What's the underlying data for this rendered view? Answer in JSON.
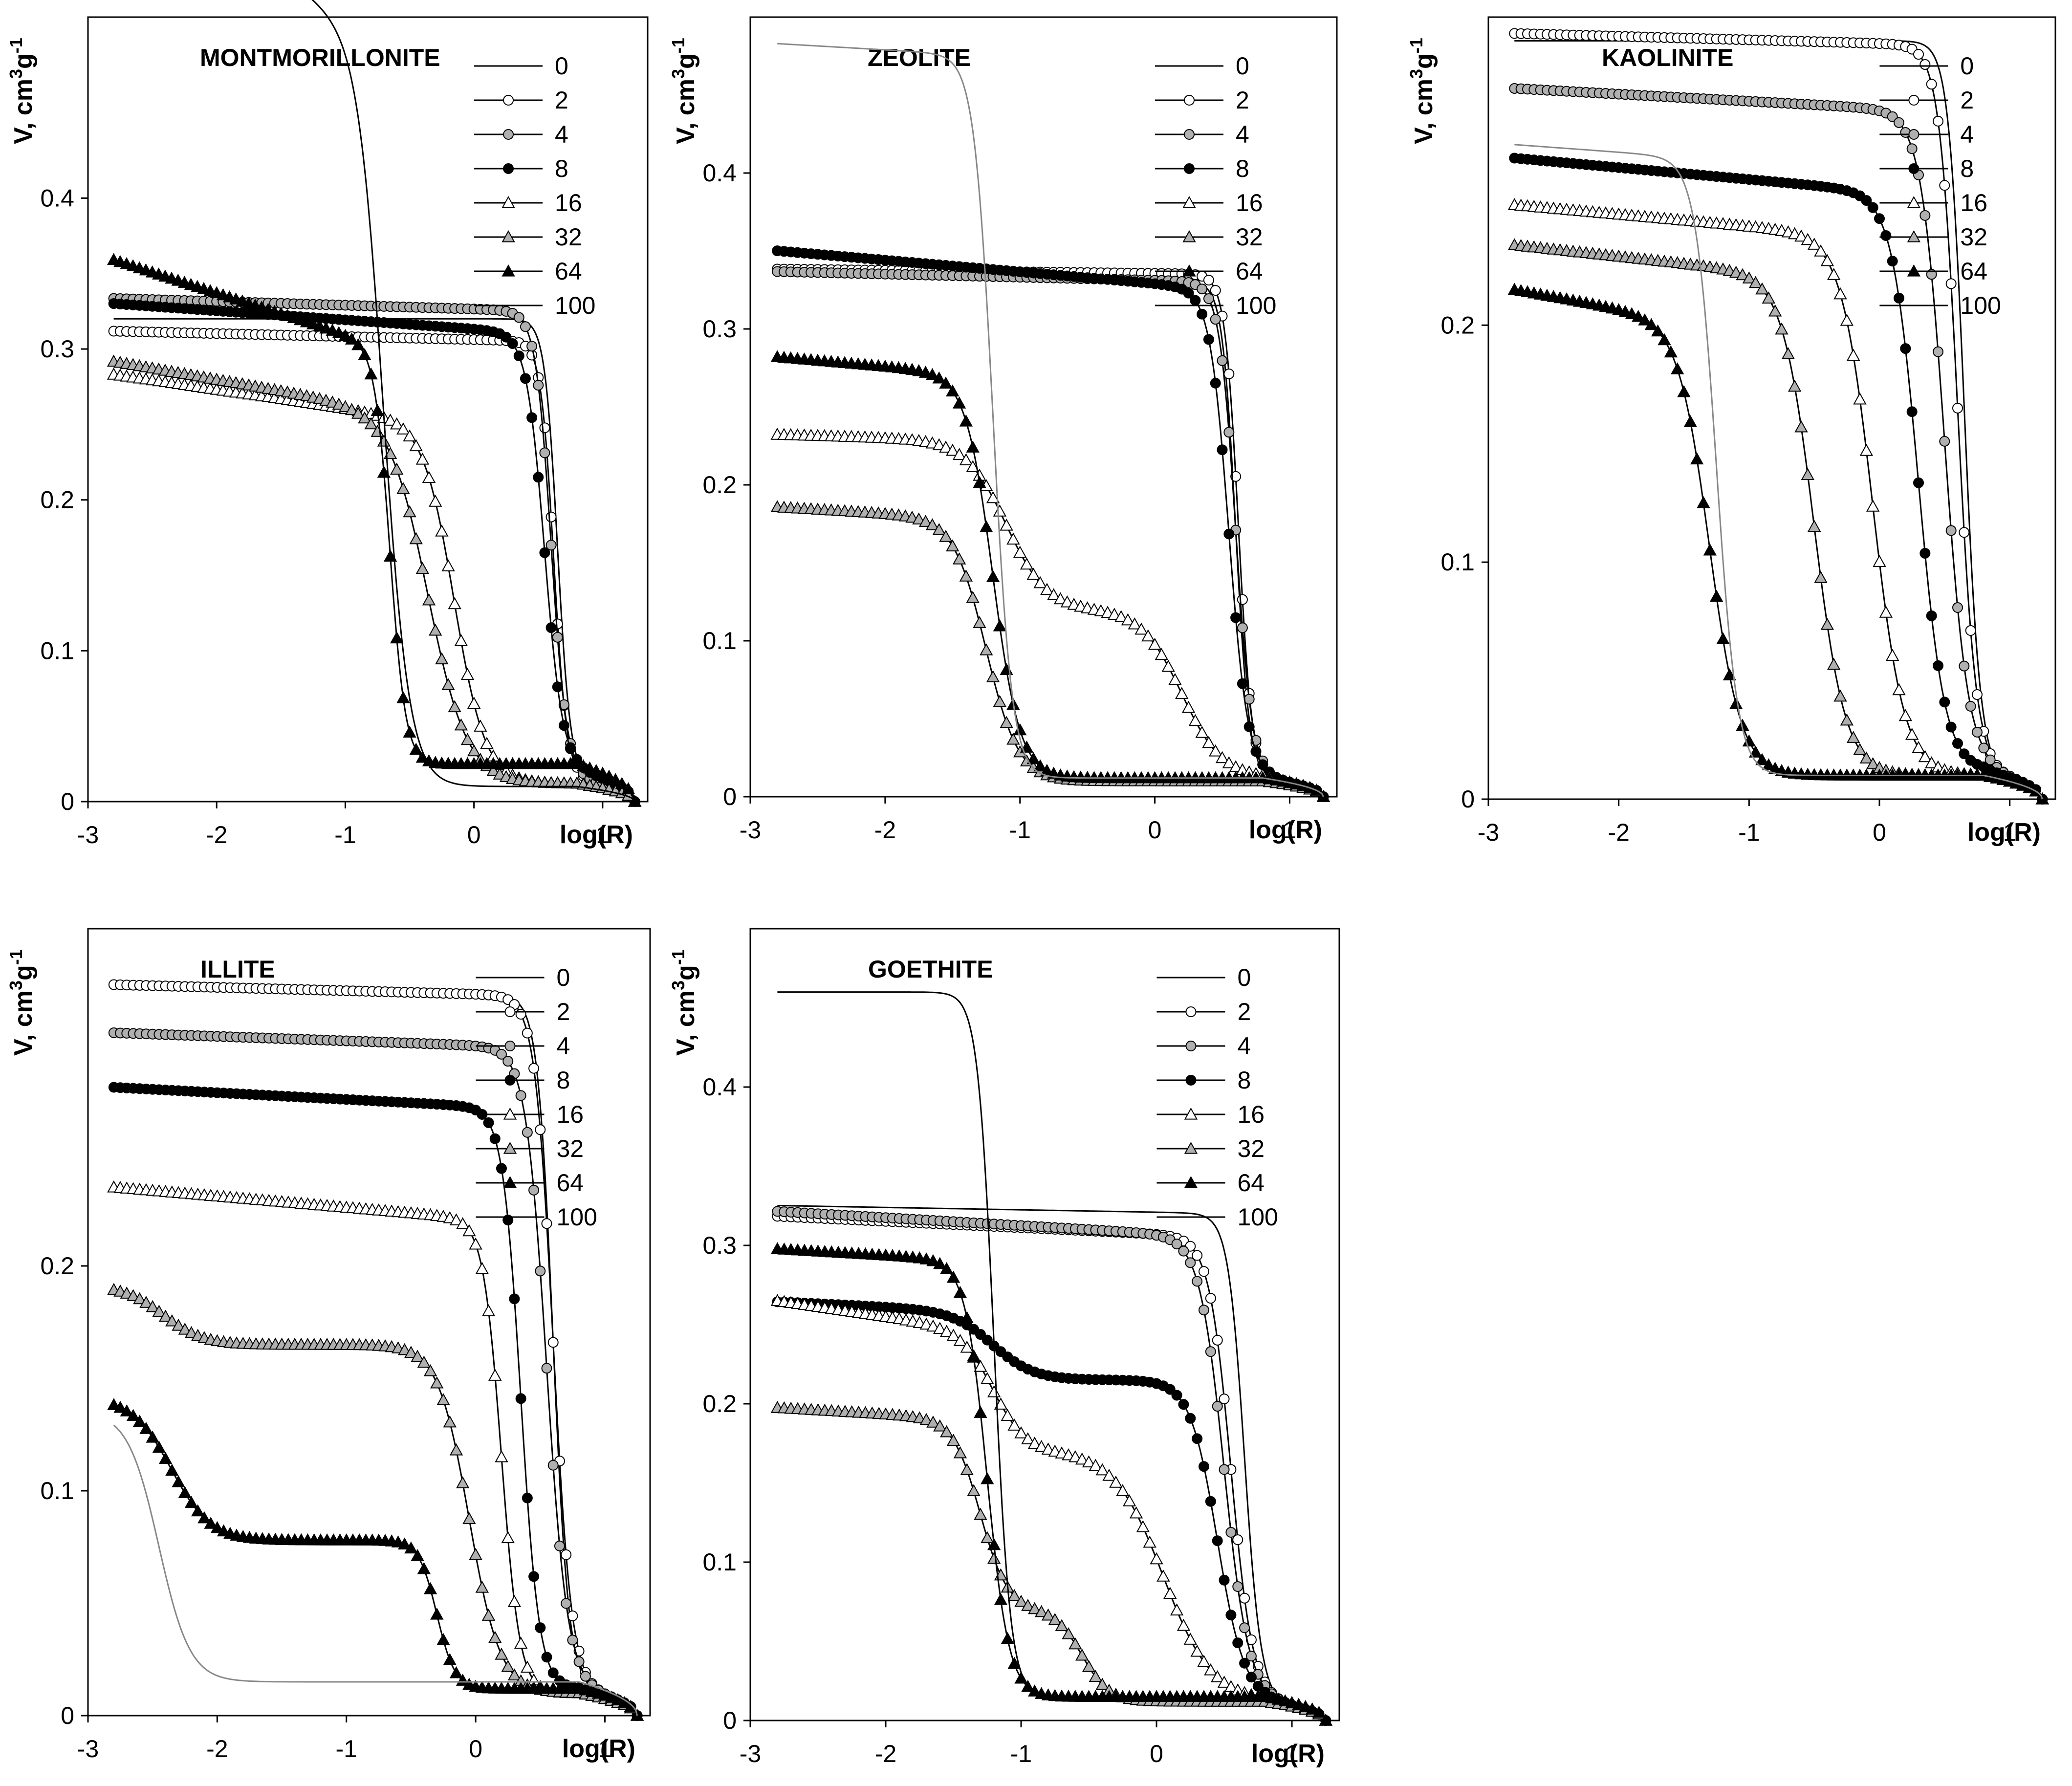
{
  "figure": {
    "legend_entries": [
      "0",
      "2",
      "4",
      "8",
      "16",
      "32",
      "64",
      "100"
    ],
    "xlabel": "log(R)",
    "ylabel_main": "V, cm",
    "ylabel_sup1": "3",
    "ylabel_mid": "g",
    "ylabel_sup2": "-1",
    "xticks": [
      -3,
      -2,
      -1,
      0,
      1
    ],
    "xtick_labels": [
      "-3",
      "-2",
      "-1",
      "0",
      "1"
    ]
  },
  "series_styles": {
    "0": {
      "marker": "none",
      "line": "#000000"
    },
    "2": {
      "marker": "circle",
      "fill": "#ffffff",
      "line": "#000000"
    },
    "4": {
      "marker": "circle",
      "fill": "#b0b0b0",
      "line": "#000000"
    },
    "8": {
      "marker": "circle",
      "fill": "#000000",
      "line": "#000000"
    },
    "16": {
      "marker": "triangle",
      "fill": "#ffffff",
      "line": "#000000"
    },
    "32": {
      "marker": "triangle",
      "fill": "#b0b0b0",
      "line": "#000000"
    },
    "64": {
      "marker": "triangle",
      "fill": "#000000",
      "line": "#000000"
    },
    "100": {
      "marker": "none",
      "line": "#000000",
      "line_alt": "#888888"
    }
  },
  "chart_data": [
    {
      "type": "line",
      "title": "MONTMORILLONITE",
      "xlabel": "log(R)",
      "ylabel": "V, cm3g-1",
      "xlim": [
        -3,
        1.35
      ],
      "ylim": [
        0,
        0.52
      ],
      "yticks": [
        0,
        0.1,
        0.2,
        0.3,
        0.4
      ],
      "ytick_labels": [
        "0",
        "0.1",
        "0.2",
        "0.3",
        "0.4"
      ],
      "series": [
        {
          "name": "0",
          "shape": "sigmoid",
          "v0": 0.32,
          "x50": 0.65,
          "w": 0.05,
          "tail": 0.015,
          "slope": 0.0
        },
        {
          "name": "2",
          "shape": "sigmoid",
          "v0": 0.305,
          "x50": 0.62,
          "w": 0.05,
          "tail": 0.015,
          "slope": 0.004
        },
        {
          "name": "4",
          "shape": "sigmoid",
          "v0": 0.325,
          "x50": 0.6,
          "w": 0.06,
          "tail": 0.015,
          "slope": 0.005
        },
        {
          "name": "8",
          "shape": "sigmoid",
          "v0": 0.31,
          "x50": 0.55,
          "w": 0.07,
          "tail": 0.02,
          "slope": 0.012
        },
        {
          "name": "16",
          "shape": "sigmoid",
          "v0": 0.25,
          "x50": -0.15,
          "w": 0.12,
          "tail": 0.012,
          "slope": 0.025
        },
        {
          "name": "32",
          "shape": "sigmoid",
          "v0": 0.255,
          "x50": -0.35,
          "w": 0.15,
          "tail": 0.012,
          "slope": 0.03
        },
        {
          "name": "64",
          "shape": "sigmoid",
          "v0": 0.3,
          "x50": -0.65,
          "w": 0.06,
          "tail": 0.025,
          "slope": 0.055
        },
        {
          "name": "100",
          "shape": "sigmoid",
          "v0": 0.5,
          "x50": -0.7,
          "w": 0.1,
          "tail": 0.01,
          "slope": 0.12,
          "color": "#000000"
        }
      ]
    },
    {
      "type": "line",
      "title": "ZEOLITE",
      "xlabel": "log(R)",
      "ylabel": "V, cm3g-1",
      "xlim": [
        -3,
        1.35
      ],
      "ylim": [
        0,
        0.5
      ],
      "yticks": [
        0,
        0.1,
        0.2,
        0.3,
        0.4
      ],
      "ytick_labels": [
        "0",
        "0.1",
        "0.2",
        "0.3",
        "0.4"
      ],
      "series": [
        {
          "name": "0",
          "shape": "sigmoid",
          "v0": 0.33,
          "x50": 0.6,
          "w": 0.05,
          "tail": 0.012,
          "slope": 0.003
        },
        {
          "name": "2",
          "shape": "sigmoid",
          "v0": 0.335,
          "x50": 0.62,
          "w": 0.05,
          "tail": 0.012,
          "slope": 0.002
        },
        {
          "name": "4",
          "shape": "sigmoid",
          "v0": 0.33,
          "x50": 0.6,
          "w": 0.06,
          "tail": 0.012,
          "slope": 0.004
        },
        {
          "name": "8",
          "shape": "sigmoid",
          "v0": 0.325,
          "x50": 0.55,
          "w": 0.07,
          "tail": 0.012,
          "slope": 0.015
        },
        {
          "name": "16",
          "shape": "twostep",
          "v0": 0.228,
          "x1": -1.1,
          "w1": 0.15,
          "mid": 0.12,
          "x2": 0.2,
          "w2": 0.15,
          "tail": 0.012,
          "slope": 0.005
        },
        {
          "name": "32",
          "shape": "sigmoid",
          "v0": 0.178,
          "x50": -1.25,
          "w": 0.12,
          "tail": 0.01,
          "slope": 0.01
        },
        {
          "name": "64",
          "shape": "sigmoid",
          "v0": 0.27,
          "x50": -1.2,
          "w": 0.1,
          "tail": 0.012,
          "slope": 0.015
        },
        {
          "name": "100",
          "shape": "sigmoid",
          "v0": 0.475,
          "x50": -1.2,
          "w": 0.07,
          "tail": 0.012,
          "slope": 0.01,
          "color": "#888888"
        }
      ]
    },
    {
      "type": "line",
      "title": "KAOLINITE",
      "xlabel": "log(R)",
      "ylabel": "V, cm3g-1",
      "xlim": [
        -3,
        1.35
      ],
      "ylim": [
        0,
        0.33
      ],
      "yticks": [
        0,
        0.1,
        0.2
      ],
      "ytick_labels": [
        "0",
        "0.1",
        "0.2"
      ],
      "series": [
        {
          "name": "0",
          "shape": "sigmoid",
          "v0": 0.32,
          "x50": 0.65,
          "w": 0.06,
          "tail": 0.012,
          "slope": 0.0
        },
        {
          "name": "2",
          "shape": "sigmoid",
          "v0": 0.318,
          "x50": 0.6,
          "w": 0.07,
          "tail": 0.012,
          "slope": 0.003
        },
        {
          "name": "4",
          "shape": "sigmoid",
          "v0": 0.29,
          "x50": 0.5,
          "w": 0.09,
          "tail": 0.012,
          "slope": 0.006
        },
        {
          "name": "8",
          "shape": "sigmoid",
          "v0": 0.255,
          "x50": 0.3,
          "w": 0.1,
          "tail": 0.012,
          "slope": 0.01
        },
        {
          "name": "16",
          "shape": "sigmoid",
          "v0": 0.237,
          "x50": -0.05,
          "w": 0.12,
          "tail": 0.01,
          "slope": 0.01
        },
        {
          "name": "32",
          "shape": "sigmoid",
          "v0": 0.22,
          "x50": -0.5,
          "w": 0.12,
          "tail": 0.01,
          "slope": 0.012
        },
        {
          "name": "64",
          "shape": "sigmoid",
          "v0": 0.2,
          "x50": -1.3,
          "w": 0.12,
          "tail": 0.01,
          "slope": 0.02
        },
        {
          "name": "100",
          "shape": "sigmoid",
          "v0": 0.27,
          "x50": -1.25,
          "w": 0.08,
          "tail": 0.01,
          "slope": 0.008,
          "color": "#888888"
        }
      ]
    },
    {
      "type": "line",
      "title": "ILLITE",
      "xlabel": "log(R)",
      "ylabel": "V, cm3g-1",
      "xlim": [
        -3,
        1.35
      ],
      "ylim": [
        0,
        0.35
      ],
      "yticks": [
        0,
        0.1,
        0.2
      ],
      "ytick_labels": [
        "0",
        "0.1",
        "0.2"
      ],
      "series": [
        {
          "name": "0",
          "shape": "sigmoid",
          "v0": 0.32,
          "x50": 0.6,
          "w": 0.06,
          "tail": 0.012,
          "slope": 0.002
        },
        {
          "name": "2",
          "shape": "sigmoid",
          "v0": 0.32,
          "x50": 0.6,
          "w": 0.07,
          "tail": 0.012,
          "slope": 0.003
        },
        {
          "name": "4",
          "shape": "sigmoid",
          "v0": 0.297,
          "x50": 0.55,
          "w": 0.08,
          "tail": 0.012,
          "slope": 0.004
        },
        {
          "name": "8",
          "shape": "sigmoid",
          "v0": 0.27,
          "x50": 0.35,
          "w": 0.07,
          "tail": 0.012,
          "slope": 0.006
        },
        {
          "name": "16",
          "shape": "sigmoid",
          "v0": 0.22,
          "x50": 0.2,
          "w": 0.07,
          "tail": 0.01,
          "slope": 0.01
        },
        {
          "name": "32",
          "shape": "twostep",
          "v0": 0.19,
          "x1": -2.4,
          "w1": 0.15,
          "mid": 0.165,
          "x2": -0.05,
          "w2": 0.12,
          "tail": 0.01,
          "slope": 0.005
        },
        {
          "name": "64",
          "shape": "twostep",
          "v0": 0.14,
          "x1": -2.35,
          "w1": 0.15,
          "mid": 0.078,
          "x2": -0.3,
          "w2": 0.07,
          "tail": 0.012,
          "slope": 0.005
        },
        {
          "name": "100",
          "shape": "sigmoid",
          "v0": 0.135,
          "x50": -2.45,
          "w": 0.12,
          "tail": 0.015,
          "slope": 0.002,
          "color": "#888888"
        }
      ]
    },
    {
      "type": "line",
      "title": "GOETHITE",
      "xlabel": "log(R)",
      "ylabel": "V, cm3g-1",
      "xlim": [
        -3,
        1.35
      ],
      "ylim": [
        0,
        0.5
      ],
      "yticks": [
        0,
        0.1,
        0.2,
        0.3,
        0.4
      ],
      "ytick_labels": [
        "0",
        "0.1",
        "0.2",
        "0.3",
        "0.4"
      ],
      "series": [
        {
          "name": "0",
          "shape": "sigmoid",
          "v0": 0.32,
          "x50": 0.65,
          "w": 0.06,
          "tail": 0.012,
          "slope": 0.003
        },
        {
          "name": "2",
          "shape": "sigmoid",
          "v0": 0.305,
          "x50": 0.55,
          "w": 0.08,
          "tail": 0.012,
          "slope": 0.008
        },
        {
          "name": "4",
          "shape": "sigmoid",
          "v0": 0.305,
          "x50": 0.5,
          "w": 0.09,
          "tail": 0.012,
          "slope": 0.01
        },
        {
          "name": "8",
          "shape": "twostep",
          "v0": 0.258,
          "x1": -1.2,
          "w1": 0.15,
          "mid": 0.215,
          "x2": 0.45,
          "w2": 0.1,
          "tail": 0.012,
          "slope": 0.008
        },
        {
          "name": "16",
          "shape": "twostep",
          "v0": 0.245,
          "x1": -1.2,
          "w1": 0.12,
          "mid": 0.17,
          "x2": 0.05,
          "w2": 0.18,
          "tail": 0.012,
          "slope": 0.025
        },
        {
          "name": "32",
          "shape": "twostep",
          "v0": 0.19,
          "x1": -1.3,
          "w1": 0.1,
          "mid": 0.07,
          "x2": -0.55,
          "w2": 0.1,
          "tail": 0.012,
          "slope": 0.01
        },
        {
          "name": "64",
          "shape": "sigmoid",
          "v0": 0.29,
          "x50": -1.25,
          "w": 0.08,
          "tail": 0.015,
          "slope": 0.01
        },
        {
          "name": "100",
          "shape": "sigmoid",
          "v0": 0.46,
          "x50": -1.2,
          "w": 0.06,
          "tail": 0.015,
          "slope": 0.0,
          "color": "#000000"
        }
      ]
    }
  ]
}
